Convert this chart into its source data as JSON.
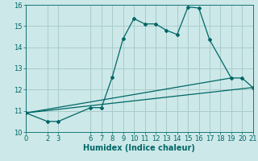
{
  "xlabel": "Humidex (Indice chaleur)",
  "bg_color": "#cce8e8",
  "grid_color": "#aacccc",
  "line_color": "#006666",
  "xlim": [
    0,
    21
  ],
  "ylim": [
    10,
    16
  ],
  "xticks": [
    0,
    2,
    3,
    6,
    7,
    8,
    9,
    10,
    11,
    12,
    13,
    14,
    15,
    16,
    17,
    18,
    19,
    20,
    21
  ],
  "yticks": [
    10,
    11,
    12,
    13,
    14,
    15,
    16
  ],
  "curve1_x": [
    0,
    2,
    3,
    6,
    7,
    8,
    9,
    10,
    11,
    12,
    13,
    14,
    15,
    16,
    17,
    19,
    20,
    21
  ],
  "curve1_y": [
    10.9,
    10.5,
    10.5,
    11.15,
    11.15,
    12.6,
    14.4,
    15.35,
    15.1,
    15.1,
    14.8,
    14.6,
    15.9,
    15.85,
    14.35,
    12.55,
    12.55,
    12.1
  ],
  "line2_x": [
    0,
    21
  ],
  "line2_y": [
    10.9,
    12.1
  ],
  "line3_x": [
    0,
    19
  ],
  "line3_y": [
    10.9,
    12.55
  ],
  "fontsize_xlabel": 7,
  "fontsize_ticks": 6
}
